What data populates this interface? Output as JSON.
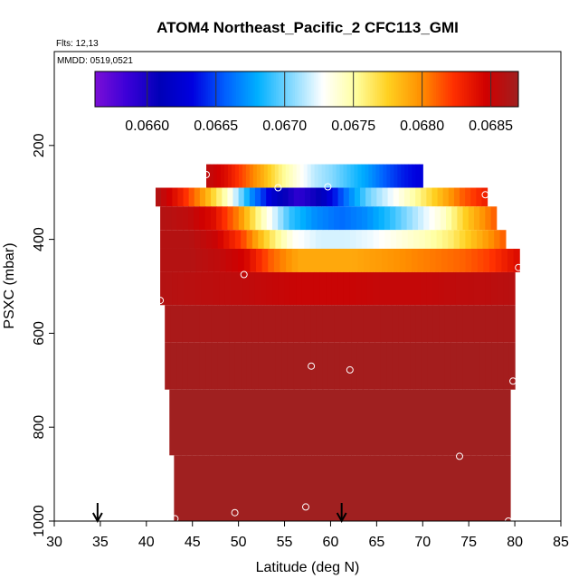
{
  "chart_data": {
    "type": "heatmap",
    "title": "ATOM4 Northeast_Pacific_2 CFC113_GMI",
    "flights_note": "Flts: 12,13",
    "mmdd_note": "MMDD: 0519,0521",
    "xlabel": "Latitude (deg N)",
    "ylabel": "PSXC (mbar)",
    "xlim": [
      30,
      85
    ],
    "ylim": [
      1000,
      0
    ],
    "x_ticks": [
      "30",
      "35",
      "40",
      "45",
      "50",
      "55",
      "60",
      "65",
      "70",
      "75",
      "80",
      "85"
    ],
    "y_ticks": [
      "200",
      "400",
      "600",
      "800",
      "1000"
    ],
    "colorbar": {
      "min": 0.06562,
      "max": 0.0687,
      "ticks": [
        "0.0660",
        "0.0665",
        "0.0670",
        "0.0675",
        "0.0680",
        "0.0685"
      ],
      "colors": [
        "#7b0fd6",
        "#3a00d8",
        "#0000b8",
        "#0000e0",
        "#0060ff",
        "#00b0ff",
        "#80d8ff",
        "#ffffff",
        "#ffffa0",
        "#ffd020",
        "#ff9000",
        "#ff3000",
        "#d00000",
        "#a02020"
      ]
    },
    "layers": [
      {
        "p_top": 240,
        "p_bot": 290,
        "lat_start": 46.5,
        "lat_end": 70,
        "values": [
          0.06855,
          0.0684,
          0.06815,
          0.0679,
          0.0676,
          0.06735,
          0.06715,
          0.06705,
          0.0669,
          0.06675,
          0.06655,
          0.0664,
          0.0663
        ]
      },
      {
        "p_top": 290,
        "p_bot": 330,
        "lat_start": 41,
        "lat_end": 77,
        "values": [
          0.0686,
          0.0683,
          0.0679,
          0.0674,
          0.0667,
          0.0662,
          0.0659,
          0.0661,
          0.0666,
          0.067,
          0.06725,
          0.0675,
          0.0678,
          0.0681,
          0.0683
        ]
      },
      {
        "p_top": 330,
        "p_bot": 380,
        "lat_start": 41.5,
        "lat_end": 78,
        "values": [
          0.0686,
          0.06855,
          0.0684,
          0.068,
          0.0674,
          0.0669,
          0.0667,
          0.0666,
          0.0667,
          0.0669,
          0.06715,
          0.0674,
          0.0678,
          0.0681
        ]
      },
      {
        "p_top": 380,
        "p_bot": 420,
        "lat_start": 41.5,
        "lat_end": 79,
        "values": [
          0.0686,
          0.0686,
          0.0685,
          0.0682,
          0.0677,
          0.0673,
          0.0672,
          0.0672,
          0.06725,
          0.06735,
          0.06745,
          0.0676,
          0.06785,
          0.0681
        ]
      },
      {
        "p_top": 420,
        "p_bot": 470,
        "lat_start": 41.5,
        "lat_end": 80.5,
        "values": [
          0.0686,
          0.0686,
          0.06855,
          0.06845,
          0.0681,
          0.0679,
          0.0679,
          0.0679,
          0.06795,
          0.068,
          0.06805,
          0.0681,
          0.0682,
          0.0684
        ]
      },
      {
        "p_top": 470,
        "p_bot": 540,
        "lat_start": 41.5,
        "lat_end": 80,
        "values": [
          0.0686,
          0.06858,
          0.06856,
          0.06855,
          0.06852,
          0.0685,
          0.0685,
          0.0685,
          0.06852,
          0.06852,
          0.06853,
          0.06855,
          0.06856,
          0.06858
        ]
      },
      {
        "p_top": 540,
        "p_bot": 620,
        "lat_start": 42,
        "lat_end": 80,
        "values": [
          0.06865
        ]
      },
      {
        "p_top": 620,
        "p_bot": 720,
        "lat_start": 42,
        "lat_end": 80,
        "values": [
          0.06868
        ]
      },
      {
        "p_top": 720,
        "p_bot": 860,
        "lat_start": 42.5,
        "lat_end": 79.5,
        "values": [
          0.0687
        ]
      },
      {
        "p_top": 860,
        "p_bot": 1000,
        "lat_start": 43,
        "lat_end": 79.5,
        "values": [
          0.0687
        ]
      }
    ],
    "sample_points": [
      {
        "lat": 69.6,
        "p": 230
      },
      {
        "lat": 46.5,
        "p": 262
      },
      {
        "lat": 40.8,
        "p": 266
      },
      {
        "lat": 54.3,
        "p": 290
      },
      {
        "lat": 59.7,
        "p": 288
      },
      {
        "lat": 76.8,
        "p": 305
      },
      {
        "lat": 50.6,
        "p": 475
      },
      {
        "lat": 80.4,
        "p": 460
      },
      {
        "lat": 41.5,
        "p": 530
      },
      {
        "lat": 57.9,
        "p": 670
      },
      {
        "lat": 62.1,
        "p": 678
      },
      {
        "lat": 79.8,
        "p": 702
      },
      {
        "lat": 74.0,
        "p": 862
      },
      {
        "lat": 57.3,
        "p": 970
      },
      {
        "lat": 49.6,
        "p": 982
      },
      {
        "lat": 43.1,
        "p": 995
      },
      {
        "lat": 79.3,
        "p": 1000
      }
    ],
    "arrow_markers": [
      34.7,
      61.2
    ]
  }
}
